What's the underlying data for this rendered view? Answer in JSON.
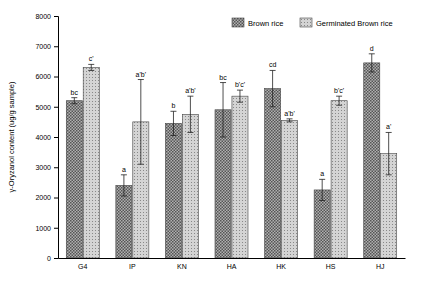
{
  "chart_data": {
    "type": "bar",
    "y_label": "γ-Oryzanol content (ug/g sample)",
    "categories": [
      "G4",
      "IP",
      "KN",
      "HA",
      "HK",
      "HS",
      "HJ"
    ],
    "series": [
      {
        "name": "Brown rice",
        "color": "#b0b0b0",
        "values": [
          5200,
          2400,
          4450,
          4900,
          5600,
          2250,
          6450
        ],
        "errors": [
          100,
          350,
          400,
          900,
          600,
          350,
          300
        ],
        "annotations": [
          "bc",
          "a",
          "b",
          "bc",
          "cd",
          "a",
          "d"
        ]
      },
      {
        "name": "Germinated Brown rice",
        "color": "#d4d4d4",
        "values": [
          6300,
          4500,
          4750,
          5350,
          4550,
          5200,
          3450
        ],
        "errors": [
          100,
          1400,
          600,
          200,
          50,
          150,
          700
        ],
        "annotations": [
          "c'",
          "a'b'",
          "a'b'",
          "b'c'",
          "a'b'",
          "b'c'",
          "a'"
        ]
      }
    ],
    "ylim": [
      0,
      8000
    ],
    "yticks": [
      0,
      1000,
      2000,
      3000,
      4000,
      5000,
      6000,
      7000,
      8000
    ],
    "legend": "top-right"
  }
}
